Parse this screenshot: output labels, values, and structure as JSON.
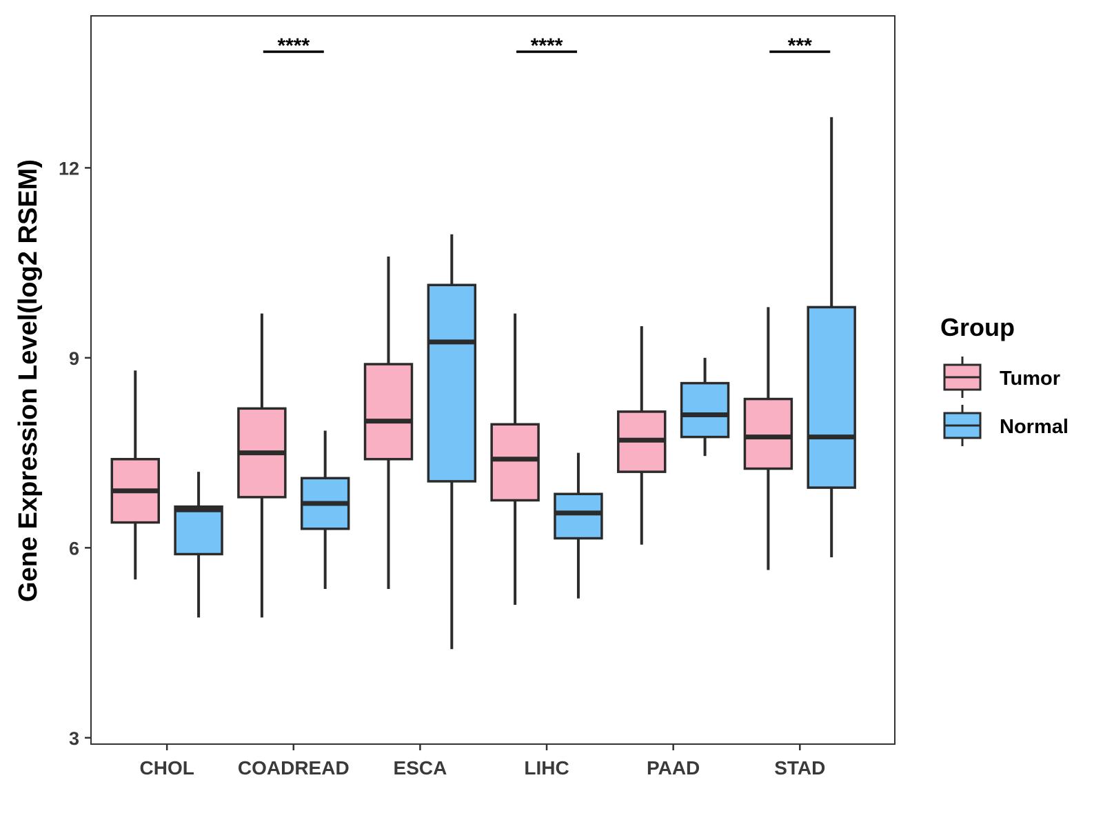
{
  "chart_data": {
    "type": "box",
    "title": "",
    "xlabel": "",
    "ylabel": "Gene Expression Level(log2 RSEM)",
    "ylim": [
      2.9,
      14.4
    ],
    "yticks": [
      3,
      6,
      9,
      12
    ],
    "ytick_labels": [
      "3",
      "6",
      "9",
      "12"
    ],
    "grid": false,
    "categories": [
      "CHOL",
      "COADREAD",
      "ESCA",
      "LIHC",
      "PAAD",
      "STAD"
    ],
    "legend": {
      "title": "Group",
      "position": "right"
    },
    "series": [
      {
        "name": "Tumor",
        "color": "#f9b0c2",
        "boxes": [
          {
            "category": "CHOL",
            "whisker_low": 5.5,
            "q1": 6.4,
            "median": 6.9,
            "q3": 7.4,
            "whisker_high": 8.8
          },
          {
            "category": "COADREAD",
            "whisker_low": 4.9,
            "q1": 6.8,
            "median": 7.5,
            "q3": 8.2,
            "whisker_high": 9.7
          },
          {
            "category": "ESCA",
            "whisker_low": 5.35,
            "q1": 7.4,
            "median": 8.0,
            "q3": 8.9,
            "whisker_high": 10.6
          },
          {
            "category": "LIHC",
            "whisker_low": 5.1,
            "q1": 6.75,
            "median": 7.4,
            "q3": 7.95,
            "whisker_high": 9.7
          },
          {
            "category": "PAAD",
            "whisker_low": 6.05,
            "q1": 7.2,
            "median": 7.7,
            "q3": 8.15,
            "whisker_high": 9.5
          },
          {
            "category": "STAD",
            "whisker_low": 5.65,
            "q1": 7.25,
            "median": 7.75,
            "q3": 8.35,
            "whisker_high": 9.8
          }
        ]
      },
      {
        "name": "Normal",
        "color": "#76c3f8",
        "boxes": [
          {
            "category": "CHOL",
            "whisker_low": 4.9,
            "q1": 5.9,
            "median": 6.6,
            "q3": 6.65,
            "whisker_high": 7.2
          },
          {
            "category": "COADREAD",
            "whisker_low": 5.35,
            "q1": 6.3,
            "median": 6.7,
            "q3": 7.1,
            "whisker_high": 7.85
          },
          {
            "category": "ESCA",
            "whisker_low": 4.4,
            "q1": 7.05,
            "median": 9.25,
            "q3": 10.15,
            "whisker_high": 10.95
          },
          {
            "category": "LIHC",
            "whisker_low": 5.2,
            "q1": 6.15,
            "median": 6.55,
            "q3": 6.85,
            "whisker_high": 7.5
          },
          {
            "category": "PAAD",
            "whisker_low": 7.45,
            "q1": 7.75,
            "median": 8.1,
            "q3": 8.6,
            "whisker_high": 9.0
          },
          {
            "category": "STAD",
            "whisker_low": 5.85,
            "q1": 6.95,
            "median": 7.75,
            "q3": 9.8,
            "whisker_high": 12.8
          }
        ]
      }
    ],
    "annotations": [
      {
        "category": "COADREAD",
        "label": "****"
      },
      {
        "category": "LIHC",
        "label": "****"
      },
      {
        "category": "STAD",
        "label": "***"
      }
    ]
  }
}
